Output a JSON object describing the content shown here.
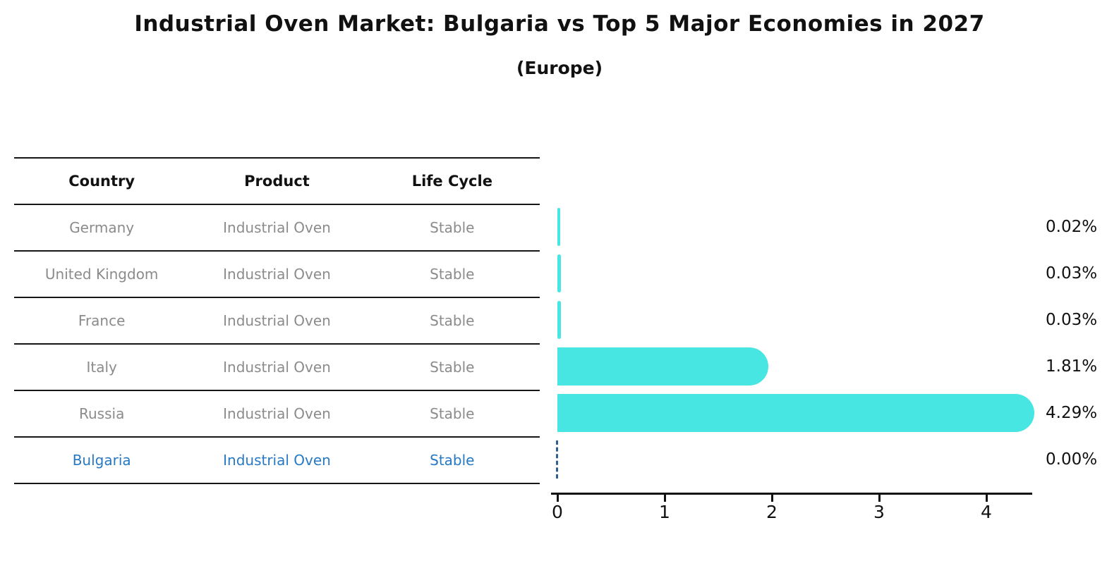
{
  "header": {
    "title": "Industrial Oven Market: Bulgaria vs Top 5 Major Economies in 2027",
    "subtitle": "(Europe)"
  },
  "colors": {
    "bar": "#48e6e2",
    "highlight_text": "#2779c4",
    "muted_text": "#8b8b8b",
    "dashed_marker": "#2e5f8e",
    "axis": "#111111"
  },
  "table": {
    "headers": [
      "Country",
      "Product",
      "Life Cycle"
    ],
    "rows": [
      {
        "country": "Germany",
        "product": "Industrial Oven",
        "life_cycle": "Stable",
        "highlight": false
      },
      {
        "country": "United Kingdom",
        "product": "Industrial Oven",
        "life_cycle": "Stable",
        "highlight": false
      },
      {
        "country": "France",
        "product": "Industrial Oven",
        "life_cycle": "Stable",
        "highlight": false
      },
      {
        "country": "Italy",
        "product": "Industrial Oven",
        "life_cycle": "Stable",
        "highlight": false
      },
      {
        "country": "Russia",
        "product": "Industrial Oven",
        "life_cycle": "Stable",
        "highlight": false
      },
      {
        "country": "Bulgaria",
        "product": "Industrial Oven",
        "life_cycle": "Stable",
        "highlight": true
      }
    ]
  },
  "chart_data": {
    "type": "bar",
    "orientation": "horizontal",
    "title": "Industrial Oven Market: Bulgaria vs Top 5 Major Economies in 2027",
    "subtitle": "(Europe)",
    "categories": [
      "Germany",
      "United Kingdom",
      "France",
      "Italy",
      "Russia",
      "Bulgaria"
    ],
    "values": [
      0.02,
      0.03,
      0.03,
      1.81,
      4.29,
      0.0
    ],
    "value_labels": [
      "0.02%",
      "0.03%",
      "0.03%",
      "1.81%",
      "4.29%",
      "0.00%"
    ],
    "xlabel": "",
    "ylabel": "",
    "xlim": [
      0,
      4.4
    ],
    "xticks": [
      "0",
      "1",
      "2",
      "3",
      "4"
    ],
    "grid": false,
    "legend": false,
    "bar_color": "#48e6e2",
    "highlight_category": "Bulgaria",
    "highlight_style": "dashed zero-value marker line"
  }
}
